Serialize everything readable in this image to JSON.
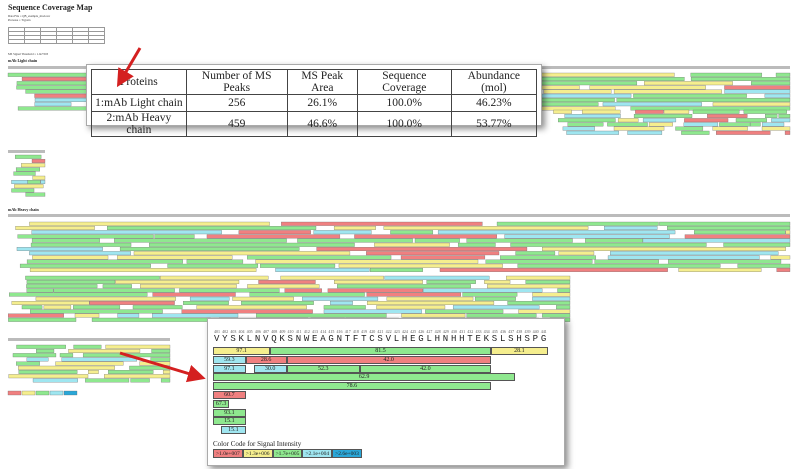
{
  "title": "Sequence Coverage Map",
  "header_lines": [
    "Data File = QB_example_mod.raw",
    "Protease = Trypsin"
  ],
  "threshold_text": "MS Signal Threshold = 1.0e+003",
  "sections": {
    "light": "mAb Light chain",
    "heavy": "mAb Heavy chain"
  },
  "summary_table": {
    "headers": [
      "Proteins",
      "Number of MS Peaks",
      "MS Peak Area",
      "Sequence Coverage",
      "Abundance (mol)"
    ],
    "rows": [
      [
        "1:mAb Light chain",
        "256",
        "26.1%",
        "100.0%",
        "46.23%"
      ],
      [
        "2:mAb Heavy chain",
        "459",
        "46.6%",
        "100.0%",
        "53.77%"
      ]
    ]
  },
  "detail": {
    "start_residue": 401,
    "sequence": "VYSKLNVQKSNWEAGNTFTCSVLHEGLHNHHTEKSLSHSPG",
    "peptides": [
      [
        {
          "from": 401,
          "to": 407,
          "label": "97.1",
          "level": 1
        },
        {
          "from": 408,
          "to": 434,
          "label": "81.5",
          "level": 2
        },
        {
          "from": 435,
          "to": 441,
          "label": "28.1",
          "level": 1
        }
      ],
      [
        {
          "from": 401,
          "to": 404,
          "label": "59.3",
          "level": 3
        },
        {
          "from": 405,
          "to": 409,
          "label": "28.6",
          "level": 0
        },
        {
          "from": 410,
          "to": 434,
          "label": "42.0",
          "level": 0
        }
      ],
      [
        {
          "from": 401,
          "to": 404,
          "label": "97.1",
          "level": 3
        },
        {
          "from": 406,
          "to": 409,
          "label": "30.0",
          "level": 3
        },
        {
          "from": 410,
          "to": 418,
          "label": "52.3",
          "level": 2
        },
        {
          "from": 419,
          "to": 434,
          "label": "42.0",
          "level": 2
        }
      ],
      [
        {
          "from": 401,
          "to": 437,
          "label": "62.9",
          "level": 2
        }
      ],
      [
        {
          "from": 401,
          "to": 434,
          "label": "78.6",
          "level": 2
        }
      ],
      [
        {
          "from": 401,
          "to": 404,
          "label": "60.7",
          "level": 0
        }
      ],
      [
        {
          "from": 401,
          "to": 402,
          "label": "67.3",
          "level": 2
        }
      ],
      [
        {
          "from": 401,
          "to": 404,
          "label": "93.1",
          "level": 2
        }
      ],
      [
        {
          "from": 401,
          "to": 404,
          "label": "15.1",
          "level": 2
        }
      ],
      [
        {
          "from": 402,
          "to": 404,
          "label": "15.1",
          "level": 3
        }
      ]
    ]
  },
  "legend": {
    "title": "Color Code for Signal Intensity",
    "items": [
      {
        "label": ">1.0e+007",
        "color": "#f08080"
      },
      {
        "label": ">1.3e+006",
        "color": "#f5ee8e"
      },
      {
        "label": ">1.7e+005",
        "color": "#8fe88f"
      },
      {
        "label": ">2.1e+004",
        "color": "#9fe6f0"
      },
      {
        "label": ">2.6e+003",
        "color": "#2aa7d8"
      }
    ]
  }
}
